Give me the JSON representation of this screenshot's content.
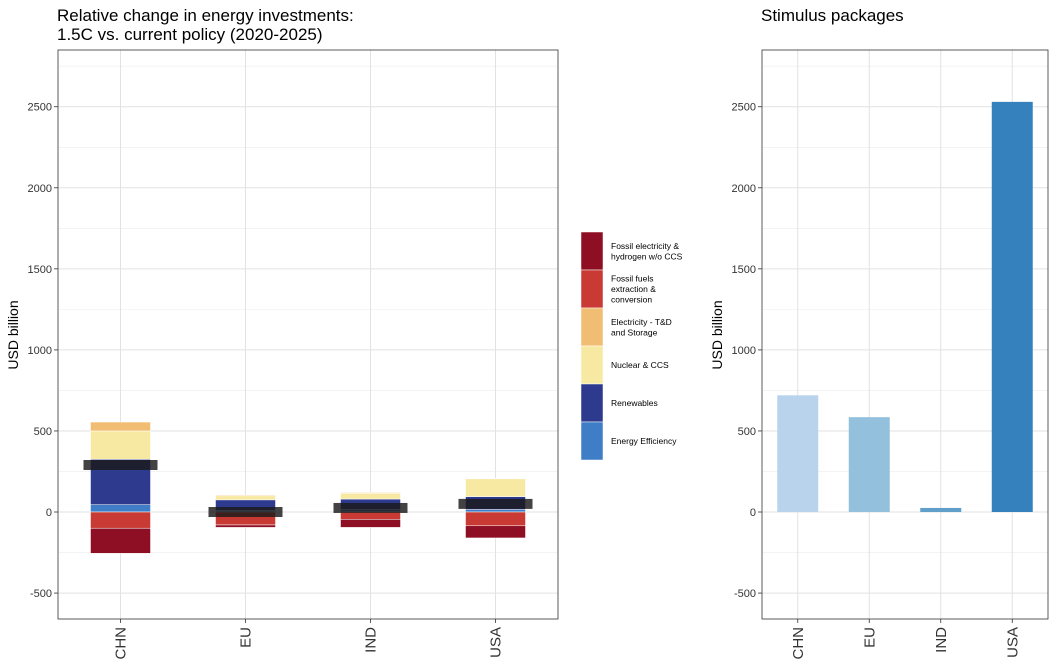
{
  "chart_data": [
    {
      "type": "bar",
      "stacked": true,
      "title_lines": [
        "Relative change in energy investments:",
        "1.5C vs. current policy (2020-2025)"
      ],
      "ylabel": "USD billion",
      "xlabel": "",
      "categories": [
        "CHN",
        "EU",
        "IND",
        "USA"
      ],
      "ylim": [
        -660,
        2850
      ],
      "yticks": [
        -500,
        0,
        500,
        1000,
        1500,
        2000,
        2500
      ],
      "grid": true,
      "legend_position": "right",
      "series": [
        {
          "name": "Fossil electricity & hydrogen w/o CCS",
          "legend_lines": [
            "Fossil electricity &",
            "hydrogen w/o CCS"
          ],
          "color": "#8e0e24",
          "values": [
            -155,
            -15,
            -50,
            -75
          ]
        },
        {
          "name": "Fossil fuels extraction & conversion",
          "legend_lines": [
            "Fossil fuels",
            "extraction &",
            "conversion"
          ],
          "color": "#c83a33",
          "values": [
            -100,
            -80,
            -45,
            -85
          ]
        },
        {
          "name": "Electricity - T&D and Storage",
          "legend_lines": [
            "Electricity - T&D",
            "and Storage"
          ],
          "color": "#f1bd73",
          "values": [
            55,
            5,
            5,
            3
          ]
        },
        {
          "name": "Nuclear & CCS",
          "legend_lines": [
            "Nuclear & CCS"
          ],
          "color": "#f8e9a2",
          "values": [
            175,
            25,
            35,
            110
          ]
        },
        {
          "name": "Renewables",
          "legend_lines": [
            "Renewables"
          ],
          "color": "#2d3a8e",
          "values": [
            280,
            65,
            65,
            80
          ]
        },
        {
          "name": "Energy Efficiency",
          "legend_lines": [
            "Energy Efficiency"
          ],
          "color": "#3f7ec7",
          "values": [
            45,
            10,
            15,
            15
          ]
        }
      ],
      "net_total": {
        "values": [
          290,
          0,
          25,
          50
        ],
        "color": "#1a1a1a"
      }
    },
    {
      "type": "bar",
      "title": "Stimulus packages",
      "ylabel": "USD billion",
      "xlabel": "",
      "categories": [
        "CHN",
        "EU",
        "IND",
        "USA"
      ],
      "values": [
        720,
        585,
        25,
        2530
      ],
      "colors": [
        "#bad3ec",
        "#92c0dd",
        "#5f9fca",
        "#3481bd"
      ],
      "ylim": [
        -660,
        2850
      ],
      "yticks": [
        -500,
        0,
        500,
        1000,
        1500,
        2000,
        2500
      ],
      "grid": true
    }
  ]
}
